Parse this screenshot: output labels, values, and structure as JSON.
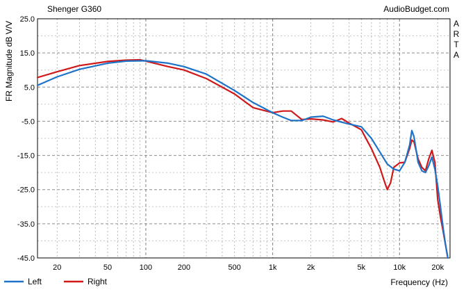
{
  "chart_data": {
    "type": "line",
    "title": "Shenger G360",
    "brand": "AudioBudget.com",
    "side_label": "ARTA",
    "xlabel": "Frequency (Hz)",
    "ylabel": "FR Magnitude dB V/V",
    "x_scale": "log",
    "xlim": [
      14,
      25000
    ],
    "ylim": [
      -45,
      25
    ],
    "grid": true,
    "legend": "bottom-left",
    "y_ticks": [
      "25.0",
      "15.0",
      "5.0",
      "-5.0",
      "-15.0",
      "-25.0",
      "-35.0",
      "-45.0"
    ],
    "x_ticks": [
      {
        "value": 20,
        "label": "20"
      },
      {
        "value": 50,
        "label": "50"
      },
      {
        "value": 100,
        "label": "100"
      },
      {
        "value": 200,
        "label": "200"
      },
      {
        "value": 500,
        "label": "500"
      },
      {
        "value": 1000,
        "label": "1k"
      },
      {
        "value": 2000,
        "label": "2k"
      },
      {
        "value": 5000,
        "label": "5k"
      },
      {
        "value": 10000,
        "label": "10k"
      },
      {
        "value": 20000,
        "label": "20k"
      }
    ],
    "series": [
      {
        "name": "Left",
        "color": "#1e73c8",
        "x": [
          14,
          20,
          30,
          50,
          70,
          100,
          150,
          200,
          300,
          500,
          700,
          1000,
          1200,
          1400,
          1700,
          2000,
          2500,
          3000,
          4000,
          5000,
          6000,
          7000,
          8000,
          9000,
          10000,
          11000,
          12000,
          12500,
          13000,
          14000,
          15000,
          16000,
          17000,
          18000,
          19000,
          20000,
          21000,
          22000,
          23000,
          24000
        ],
        "y": [
          5.5,
          8.0,
          10.2,
          12.0,
          12.6,
          12.7,
          12.0,
          11.0,
          8.8,
          4.0,
          0.5,
          -2.5,
          -3.8,
          -4.8,
          -4.8,
          -3.8,
          -3.5,
          -4.6,
          -5.8,
          -6.6,
          -10.0,
          -14.0,
          -17.5,
          -19.0,
          -19.5,
          -17.0,
          -12.0,
          -7.7,
          -9.5,
          -17.0,
          -19.5,
          -20.0,
          -18.0,
          -15.5,
          -19.0,
          -24.0,
          -30.0,
          -36.0,
          -41.0,
          -45.0
        ]
      },
      {
        "name": "Right",
        "color": "#d01818",
        "x": [
          14,
          20,
          30,
          50,
          70,
          90,
          100,
          150,
          200,
          300,
          500,
          700,
          1000,
          1200,
          1400,
          1700,
          2000,
          2500,
          3000,
          3500,
          4000,
          5000,
          6000,
          7000,
          7500,
          8000,
          8500,
          9000,
          10000,
          11000,
          12000,
          12500,
          13000,
          14000,
          15000,
          16000,
          17000,
          18000,
          19000,
          20000,
          21000,
          22000,
          23000,
          24000
        ],
        "y": [
          7.8,
          9.5,
          11.3,
          12.5,
          12.9,
          13.0,
          12.6,
          11.0,
          10.0,
          7.5,
          3.0,
          -1.0,
          -2.5,
          -2.0,
          -2.0,
          -4.5,
          -4.3,
          -4.6,
          -5.2,
          -4.2,
          -5.5,
          -7.5,
          -13.0,
          -18.5,
          -22.0,
          -25.0,
          -23.0,
          -18.5,
          -17.2,
          -17.0,
          -13.0,
          -10.5,
          -11.0,
          -16.0,
          -18.5,
          -19.5,
          -16.0,
          -13.5,
          -17.0,
          -28.0,
          -33.0,
          -37.0,
          -41.0,
          -45.5
        ]
      }
    ]
  }
}
